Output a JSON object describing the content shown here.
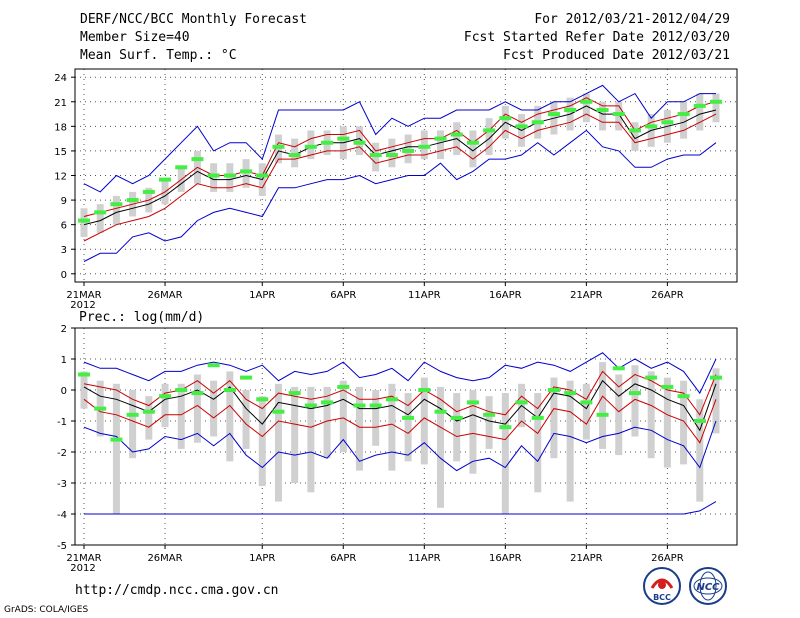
{
  "header": {
    "title": "DERF/NCC/BCC Monthly Forecast",
    "member_size": "Member Size=40",
    "variable": "Mean Surf. Temp.: °C",
    "period": "For 2012/03/21-2012/04/29",
    "fcst_started": "Fcst Started Refer Date 2012/03/20",
    "fcst_produced": "Fcst Produced Date 2012/03/21"
  },
  "footer": {
    "url": "http://cmdp.ncc.cma.gov.cn",
    "grads": "GrADS: COLA/IGES",
    "logo_bcc": "BCC",
    "logo_ncc": "NCC"
  },
  "colors": {
    "envelope": "#0000cc",
    "mean": "#000000",
    "spread": "#cc0000",
    "observed": "#44ee44",
    "box": "#d0d0d0"
  },
  "chart_data": [
    {
      "type": "line",
      "id": "temperature",
      "title": "Mean Surf. Temp.: °C",
      "x": [
        1,
        2,
        3,
        4,
        5,
        6,
        7,
        8,
        9,
        10,
        11,
        12,
        13,
        14,
        15,
        16,
        17,
        18,
        19,
        20,
        21,
        22,
        23,
        24,
        25,
        26,
        27,
        28,
        29,
        30,
        31,
        32,
        33,
        34,
        35,
        36,
        37,
        38,
        39,
        40
      ],
      "x_tick_labels": [
        "21MAR",
        "26MAR",
        "1APR",
        "6APR",
        "11APR",
        "16APR",
        "21APR",
        "26APR"
      ],
      "x_tick_positions": [
        1,
        6,
        12,
        17,
        22,
        27,
        32,
        37
      ],
      "year_label": "2012",
      "ylim": [
        -1,
        25
      ],
      "yticks": [
        0,
        3,
        6,
        9,
        12,
        15,
        18,
        21,
        24
      ],
      "series": [
        {
          "name": "max",
          "values": [
            11,
            10,
            12,
            11,
            12,
            14,
            16,
            18,
            15,
            16,
            16,
            14,
            20,
            20,
            20,
            20,
            20,
            21,
            17,
            19,
            18,
            19,
            19,
            20,
            20,
            20,
            21,
            20,
            20,
            21,
            21,
            22,
            23,
            21,
            22,
            19,
            21,
            21,
            22,
            22
          ]
        },
        {
          "name": "upper",
          "values": [
            7,
            7.5,
            8,
            8.5,
            9,
            10,
            11.5,
            13,
            12,
            12,
            12.5,
            12,
            16,
            15.5,
            16.5,
            17,
            17,
            17.5,
            15,
            15.5,
            16,
            16.5,
            16.5,
            17.5,
            16,
            17.5,
            19.5,
            18.5,
            19.5,
            20,
            20.5,
            21.5,
            20.5,
            20.5,
            17.5,
            18.5,
            19,
            19.5,
            20.5,
            21
          ]
        },
        {
          "name": "mean",
          "values": [
            6,
            6.5,
            7.5,
            8,
            8.5,
            9.5,
            11,
            12.5,
            11.5,
            11.5,
            12,
            11.5,
            15,
            14.5,
            15.5,
            16,
            16,
            16.5,
            14.5,
            15,
            15.5,
            15.5,
            16,
            16.5,
            15,
            16.5,
            18.5,
            17.5,
            18.5,
            19,
            19.5,
            20.5,
            19.5,
            19.5,
            16.5,
            17.5,
            18,
            18.5,
            19.5,
            20
          ]
        },
        {
          "name": "lower",
          "values": [
            4,
            5,
            6,
            6.5,
            7,
            8,
            9.5,
            11,
            10.5,
            10.5,
            11,
            10.5,
            14,
            14,
            14.5,
            15,
            15,
            15.5,
            13.5,
            14,
            14.5,
            14.5,
            15,
            15.5,
            14,
            15.5,
            17.5,
            16.5,
            17.5,
            18,
            18.5,
            19.5,
            18.5,
            18.5,
            16,
            16.5,
            17,
            17.5,
            18.5,
            19.5
          ]
        },
        {
          "name": "min",
          "values": [
            1.5,
            2.5,
            2.5,
            4.5,
            5,
            4,
            4.5,
            6.5,
            7.5,
            8,
            7.5,
            7,
            10.5,
            10.5,
            11,
            11.5,
            11.5,
            12,
            11,
            11.5,
            12,
            12,
            13.5,
            11.5,
            12.5,
            14,
            14,
            14.5,
            16,
            14.5,
            16,
            17.5,
            15.5,
            15,
            13,
            13,
            14,
            14.5,
            14.5,
            16
          ]
        },
        {
          "name": "observed",
          "values": [
            6.5,
            7.5,
            8.5,
            9,
            10,
            11.5,
            13,
            14,
            12,
            12,
            12.5,
            12,
            15.5,
            14.5,
            15.5,
            16,
            16.5,
            16,
            14.5,
            14.5,
            15,
            15.5,
            16.5,
            17,
            16,
            17.5,
            19,
            18,
            18.5,
            19.5,
            20,
            21,
            20,
            19.5,
            17.5,
            18,
            18.5,
            19.5,
            20.5,
            21
          ]
        },
        {
          "name": "box_high",
          "values": [
            8,
            8.5,
            9.5,
            10,
            10.5,
            11.5,
            13,
            15,
            13.5,
            13.5,
            14,
            13.5,
            17,
            16.5,
            17.5,
            17.5,
            18,
            18,
            16,
            16.5,
            17,
            17.5,
            17.5,
            18.5,
            17.5,
            19,
            20.5,
            19.5,
            20.5,
            21,
            21.5,
            22,
            21,
            21,
            18.5,
            19.5,
            20,
            21,
            22,
            22
          ]
        },
        {
          "name": "box_low",
          "values": [
            4.5,
            5,
            6,
            7,
            7.5,
            8.5,
            10,
            11,
            10,
            10,
            10.5,
            9.5,
            13.5,
            13,
            14,
            14.5,
            14,
            14.5,
            12.5,
            13,
            13.5,
            14,
            14,
            14.5,
            13,
            14.5,
            16.5,
            15.5,
            16.5,
            17,
            17.5,
            18.5,
            17.5,
            17.5,
            15,
            15.5,
            16,
            16.5,
            17.5,
            18.5
          ]
        }
      ]
    },
    {
      "type": "line",
      "id": "precipitation",
      "title": "Prec.: log(mm/d)",
      "x": [
        1,
        2,
        3,
        4,
        5,
        6,
        7,
        8,
        9,
        10,
        11,
        12,
        13,
        14,
        15,
        16,
        17,
        18,
        19,
        20,
        21,
        22,
        23,
        24,
        25,
        26,
        27,
        28,
        29,
        30,
        31,
        32,
        33,
        34,
        35,
        36,
        37,
        38,
        39,
        40
      ],
      "x_tick_labels": [
        "21MAR",
        "26MAR",
        "1APR",
        "6APR",
        "11APR",
        "16APR",
        "21APR",
        "26APR"
      ],
      "x_tick_positions": [
        1,
        6,
        12,
        17,
        22,
        27,
        32,
        37
      ],
      "year_label": "2012",
      "ylim": [
        -5,
        2
      ],
      "yticks": [
        -5,
        -4,
        -3,
        -2,
        -1,
        0,
        1,
        2
      ],
      "series": [
        {
          "name": "max",
          "values": [
            0.9,
            0.7,
            0.7,
            0.5,
            0.3,
            0.6,
            0.6,
            0.8,
            0.9,
            0.8,
            0.6,
            0.8,
            0.3,
            0.6,
            0.5,
            0.6,
            0.9,
            0.4,
            0.5,
            0.7,
            0.3,
            0.9,
            0.6,
            0.4,
            0.3,
            0.4,
            0.8,
            0.7,
            0.9,
            0.8,
            0.6,
            0.9,
            1.2,
            0.7,
            1.0,
            0.7,
            0.9,
            0.6,
            -0.1,
            1.0
          ]
        },
        {
          "name": "upper",
          "values": [
            0.2,
            0.1,
            0.0,
            -0.3,
            -0.5,
            -0.1,
            0.0,
            0.3,
            -0.1,
            0.3,
            -0.3,
            -0.6,
            -0.1,
            -0.2,
            -0.3,
            -0.2,
            0.0,
            -0.3,
            -0.3,
            -0.2,
            -0.5,
            0.0,
            -0.3,
            -0.7,
            -0.5,
            -0.7,
            -0.8,
            -0.2,
            -0.6,
            0.1,
            0.0,
            -0.3,
            0.6,
            0.1,
            0.5,
            0.3,
            0.0,
            -0.1,
            -0.8,
            0.5
          ]
        },
        {
          "name": "mean",
          "values": [
            0.1,
            -0.2,
            -0.3,
            -0.5,
            -0.7,
            -0.3,
            -0.2,
            0.0,
            -0.3,
            0.1,
            -0.6,
            -1.1,
            -0.4,
            -0.5,
            -0.6,
            -0.5,
            -0.3,
            -0.6,
            -0.6,
            -0.5,
            -0.8,
            -0.3,
            -0.6,
            -1.0,
            -0.8,
            -1.0,
            -1.1,
            -0.5,
            -0.9,
            -0.1,
            -0.2,
            -0.6,
            0.3,
            -0.2,
            0.2,
            0.0,
            -0.3,
            -0.5,
            -1.3,
            0.2
          ]
        },
        {
          "name": "lower",
          "values": [
            -0.3,
            -0.7,
            -0.8,
            -1.0,
            -1.2,
            -0.8,
            -0.8,
            -0.5,
            -0.9,
            -0.5,
            -1.1,
            -1.5,
            -1.0,
            -1.1,
            -1.2,
            -1.0,
            -0.9,
            -1.2,
            -1.2,
            -1.1,
            -1.4,
            -0.9,
            -1.2,
            -1.5,
            -1.4,
            -1.5,
            -1.6,
            -1.0,
            -1.4,
            -0.6,
            -0.7,
            -1.1,
            -0.2,
            -0.7,
            -0.3,
            -0.5,
            -0.8,
            -1.0,
            -1.7,
            -0.3
          ]
        },
        {
          "name": "min",
          "values": [
            -1.2,
            -1.4,
            -1.5,
            -2.0,
            -1.9,
            -1.5,
            -1.6,
            -1.4,
            -1.8,
            -1.4,
            -2.1,
            -2.5,
            -2.0,
            -2.1,
            -2.0,
            -2.2,
            -1.6,
            -2.3,
            -2.1,
            -2.0,
            -2.1,
            -1.7,
            -2.2,
            -2.6,
            -2.3,
            -2.2,
            -2.5,
            -1.8,
            -2.3,
            -1.4,
            -1.5,
            -1.7,
            -1.5,
            -1.4,
            -1.2,
            -1.3,
            -1.6,
            -1.8,
            -2.5,
            -1.0
          ]
        },
        {
          "name": "observed",
          "values": [
            0.5,
            -0.6,
            -1.6,
            -0.8,
            -0.7,
            -0.2,
            0.0,
            -0.1,
            0.8,
            0.0,
            0.4,
            -0.3,
            -0.7,
            -0.1,
            -0.5,
            -0.4,
            0.1,
            -0.5,
            -0.5,
            -0.3,
            -0.9,
            0.0,
            -0.7,
            -0.9,
            -0.4,
            -0.8,
            -1.2,
            -0.4,
            -0.9,
            0.0,
            -0.1,
            -0.4,
            -0.8,
            0.7,
            -0.1,
            0.4,
            0.1,
            -0.2,
            -1.0,
            0.4
          ]
        },
        {
          "name": "no_rain_floor",
          "values": [
            -4,
            -4,
            -4,
            -4,
            -4,
            -4,
            -4,
            -4,
            -4,
            -4,
            -4,
            -4,
            -4,
            -4,
            -4,
            -4,
            -4,
            -4,
            -4,
            -4,
            -4,
            -4,
            -4,
            -4,
            -4,
            -4,
            -4,
            -4,
            -4,
            -4,
            -4,
            -4,
            -4,
            -4,
            -4,
            -4,
            -4,
            -4,
            -3.9,
            -3.6
          ]
        },
        {
          "name": "box_high",
          "values": [
            0.6,
            0.3,
            0.2,
            0.0,
            -0.2,
            0.2,
            0.2,
            0.5,
            0.3,
            0.6,
            0.0,
            -0.2,
            0.2,
            0.1,
            0.1,
            0.1,
            0.3,
            0.1,
            0.0,
            0.2,
            -0.1,
            0.4,
            0.1,
            -0.1,
            0.0,
            -0.2,
            -0.1,
            0.2,
            -0.1,
            0.4,
            0.3,
            0.2,
            0.9,
            0.5,
            0.8,
            0.6,
            0.4,
            0.3,
            -0.3,
            0.7
          ]
        },
        {
          "name": "box_low",
          "values": [
            -0.6,
            -1.5,
            -4.0,
            -2.2,
            -1.6,
            -1.2,
            -1.9,
            -1.7,
            -1.5,
            -2.3,
            -1.9,
            -3.1,
            -3.6,
            -3.0,
            -3.3,
            -2.2,
            -2.0,
            -2.6,
            -1.8,
            -2.6,
            -2.3,
            -2.4,
            -3.8,
            -2.3,
            -2.7,
            -1.9,
            -4.0,
            -1.2,
            -3.3,
            -2.2,
            -3.6,
            -1.6,
            -1.9,
            -2.1,
            -1.5,
            -2.2,
            -2.5,
            -2.4,
            -3.6,
            -1.4
          ]
        }
      ]
    }
  ]
}
